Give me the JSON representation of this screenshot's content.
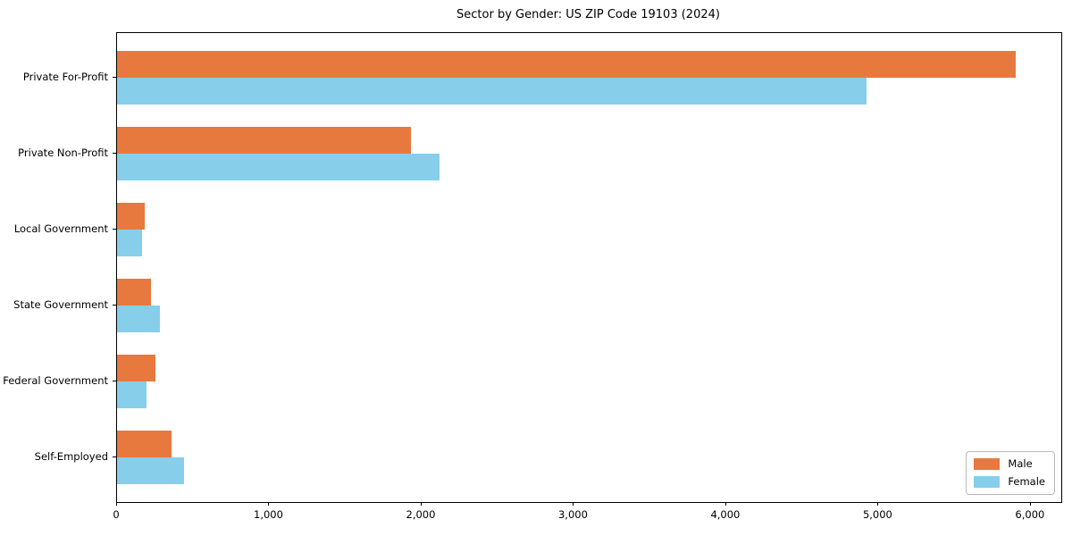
{
  "figure": {
    "background": "#ffffff"
  },
  "chart_data": {
    "type": "bar",
    "orientation": "horizontal",
    "title": "Sector by Gender: US ZIP Code 19103 (2024)",
    "categories": [
      "Private For-Profit",
      "Private Non-Profit",
      "Local Government",
      "State Government",
      "Federal Government",
      "Self-Employed"
    ],
    "series": [
      {
        "name": "Male",
        "color": "#e8793e",
        "values": [
          5900,
          1930,
          180,
          220,
          250,
          360
        ]
      },
      {
        "name": "Female",
        "color": "#87ceeb",
        "values": [
          4920,
          2120,
          165,
          280,
          195,
          440
        ]
      }
    ],
    "xlabel": "",
    "ylabel": "",
    "xlim": [
      0,
      6200
    ],
    "xticks": [
      0,
      1000,
      2000,
      3000,
      4000,
      5000,
      6000
    ],
    "xtick_labels": [
      "0",
      "1,000",
      "2,000",
      "3,000",
      "4,000",
      "5,000",
      "6,000"
    ],
    "grid": false,
    "legend": {
      "position": "lower right",
      "entries": [
        "Male",
        "Female"
      ]
    }
  }
}
